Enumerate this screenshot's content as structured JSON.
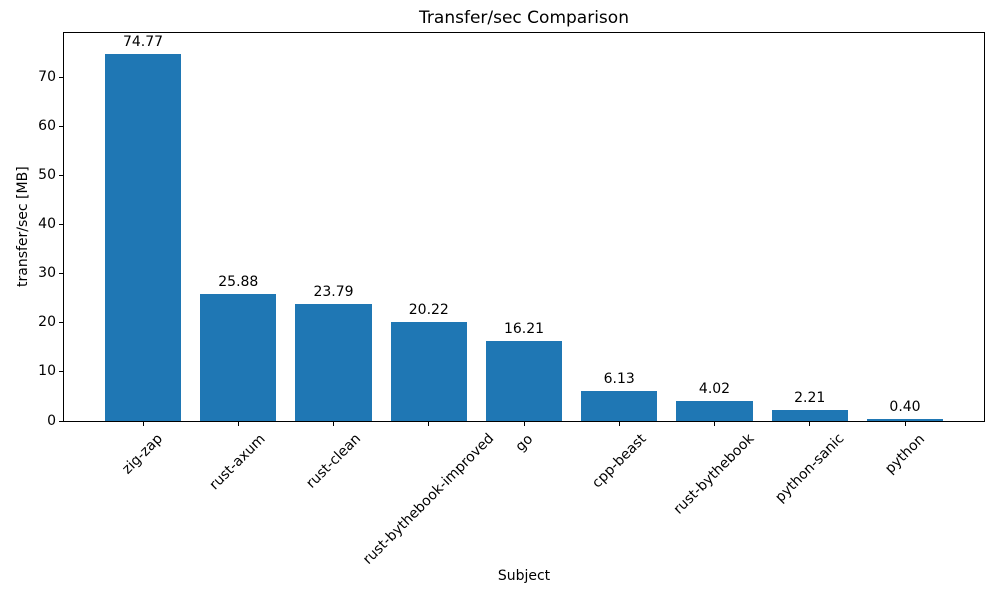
{
  "chart_data": {
    "type": "bar",
    "title": "Transfer/sec Comparison",
    "xlabel": "Subject",
    "ylabel": "transfer/sec [MB]",
    "categories": [
      "zig-zap",
      "rust-axum",
      "rust-clean",
      "rust-bythebook-improved",
      "go",
      "cpp-beast",
      "rust-bythebook",
      "python-sanic",
      "python"
    ],
    "values": [
      74.77,
      25.88,
      23.79,
      20.22,
      16.21,
      6.13,
      4.02,
      2.21,
      0.4
    ],
    "bar_labels": [
      "74.77",
      "25.88",
      "23.79",
      "20.22",
      "16.21",
      "6.13",
      "4.02",
      "2.21",
      "0.40"
    ],
    "yticks": [
      0,
      10,
      20,
      30,
      40,
      50,
      60,
      70
    ],
    "ylim": [
      0,
      79
    ],
    "bar_width_fraction": 0.8,
    "x_tick_rotation_deg": 45,
    "grid": false,
    "legend": null,
    "colors": {
      "bar": "#1f77b4",
      "text": "#000000",
      "spine": "#000000",
      "background": "#ffffff"
    }
  }
}
